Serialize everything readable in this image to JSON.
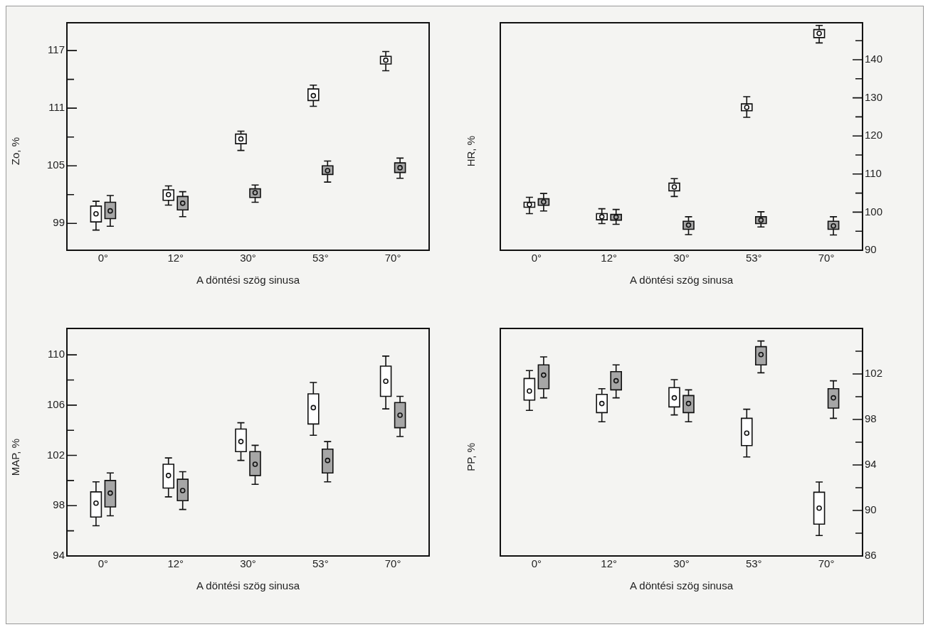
{
  "chart_data": [
    {
      "type": "box",
      "ylabel": "Zo, %",
      "xlabel": "A döntési szög sinusa",
      "categories": [
        "0°",
        "12°",
        "30°",
        "53°",
        "70°"
      ],
      "ylim": [
        96.2,
        119.9
      ],
      "yticks": [
        99,
        {
          "value": 102,
          "label": null
        },
        105,
        {
          "value": 108,
          "label": null
        },
        111,
        {
          "value": 114,
          "label": null
        },
        117
      ],
      "grid": false,
      "legend": false,
      "marker": "circle",
      "series": [
        {
          "color": "#ffffff",
          "boxes": [
            {
              "low": 98.3,
              "q1": 99.15,
              "median": 100.0,
              "q3": 100.8,
              "high": 101.3
            },
            {
              "low": 100.9,
              "q1": 101.4,
              "median": 102.0,
              "q3": 102.5,
              "high": 102.9
            },
            {
              "low": 106.6,
              "q1": 107.3,
              "median": 107.8,
              "q3": 108.3,
              "high": 108.6
            },
            {
              "low": 111.2,
              "q1": 111.8,
              "median": 112.3,
              "q3": 113.0,
              "high": 113.4
            },
            {
              "low": 114.9,
              "q1": 115.6,
              "median": 116.0,
              "q3": 116.4,
              "high": 116.9
            }
          ]
        },
        {
          "color": "#a6a6a6",
          "boxes": [
            {
              "low": 98.7,
              "q1": 99.5,
              "median": 100.3,
              "q3": 101.2,
              "high": 101.9
            },
            {
              "low": 99.7,
              "q1": 100.4,
              "median": 101.1,
              "q3": 101.8,
              "high": 102.3
            },
            {
              "low": 101.2,
              "q1": 101.7,
              "median": 102.2,
              "q3": 102.6,
              "high": 103.0
            },
            {
              "low": 103.3,
              "q1": 104.1,
              "median": 104.5,
              "q3": 105.0,
              "high": 105.5
            },
            {
              "low": 103.7,
              "q1": 104.3,
              "median": 104.8,
              "q3": 105.3,
              "high": 105.8
            }
          ]
        }
      ]
    },
    {
      "type": "box",
      "ylabel": "HR, %",
      "xlabel": "A döntési szög sinusa",
      "categories": [
        "0°",
        "12°",
        "30°",
        "53°",
        "70°"
      ],
      "y2lim": [
        90,
        149.7
      ],
      "y2ticks": [
        90,
        {
          "value": 95,
          "label": null
        },
        100,
        {
          "value": 105,
          "label": null
        },
        110,
        {
          "value": 115,
          "label": null
        },
        120,
        {
          "value": 125,
          "label": null
        },
        130,
        {
          "value": 135,
          "label": null
        },
        140,
        {
          "value": 145,
          "label": null
        }
      ],
      "grid": false,
      "legend": false,
      "marker": "circle",
      "series": [
        {
          "color": "#ffffff",
          "axis": "y2",
          "boxes": [
            {
              "low": 99.6,
              "q1": 101.3,
              "median": 102.0,
              "q3": 102.6,
              "high": 103.9
            },
            {
              "low": 97.0,
              "q1": 98.0,
              "median": 98.8,
              "q3": 99.6,
              "high": 100.9
            },
            {
              "low": 104.1,
              "q1": 105.6,
              "median": 106.6,
              "q3": 107.6,
              "high": 108.8
            },
            {
              "low": 124.9,
              "q1": 126.6,
              "median": 127.5,
              "q3": 128.4,
              "high": 130.3
            },
            {
              "low": 144.4,
              "q1": 145.8,
              "median": 146.9,
              "q3": 147.9,
              "high": 149.0
            }
          ]
        },
        {
          "color": "#a6a6a6",
          "axis": "y2",
          "boxes": [
            {
              "low": 100.3,
              "q1": 101.8,
              "median": 102.7,
              "q3": 103.5,
              "high": 104.9
            },
            {
              "low": 96.8,
              "q1": 97.9,
              "median": 98.7,
              "q3": 99.4,
              "high": 100.7
            },
            {
              "low": 94.1,
              "q1": 95.5,
              "median": 96.6,
              "q3": 97.6,
              "high": 98.8
            },
            {
              "low": 96.1,
              "q1": 97.0,
              "median": 97.9,
              "q3": 98.8,
              "high": 100.1
            },
            {
              "low": 94.0,
              "q1": 95.5,
              "median": 96.4,
              "q3": 97.6,
              "high": 98.8
            }
          ]
        }
      ]
    },
    {
      "type": "box",
      "ylabel": "MAP, %",
      "xlabel": "A döntési szög sinusa",
      "categories": [
        "0°",
        "12°",
        "30°",
        "53°",
        "70°"
      ],
      "ylim": [
        94,
        112.1
      ],
      "yticks": [
        94,
        {
          "value": 96,
          "label": null
        },
        98,
        {
          "value": 100,
          "label": null
        },
        102,
        {
          "value": 104,
          "label": null
        },
        106,
        {
          "value": 108,
          "label": null
        },
        110
      ],
      "grid": false,
      "legend": false,
      "marker": "circle",
      "series": [
        {
          "color": "#ffffff",
          "boxes": [
            {
              "low": 96.4,
              "q1": 97.1,
              "median": 98.2,
              "q3": 99.1,
              "high": 99.9
            },
            {
              "low": 98.7,
              "q1": 99.4,
              "median": 100.4,
              "q3": 101.3,
              "high": 101.8
            },
            {
              "low": 101.6,
              "q1": 102.3,
              "median": 103.1,
              "q3": 104.1,
              "high": 104.6
            },
            {
              "low": 103.6,
              "q1": 104.5,
              "median": 105.8,
              "q3": 106.9,
              "high": 107.8
            },
            {
              "low": 105.7,
              "q1": 106.7,
              "median": 107.9,
              "q3": 109.1,
              "high": 109.9
            }
          ]
        },
        {
          "color": "#a6a6a6",
          "boxes": [
            {
              "low": 97.2,
              "q1": 97.9,
              "median": 99.0,
              "q3": 100.0,
              "high": 100.6
            },
            {
              "low": 97.7,
              "q1": 98.4,
              "median": 99.2,
              "q3": 100.1,
              "high": 100.7
            },
            {
              "low": 99.7,
              "q1": 100.4,
              "median": 101.3,
              "q3": 102.3,
              "high": 102.8
            },
            {
              "low": 99.9,
              "q1": 100.6,
              "median": 101.6,
              "q3": 102.5,
              "high": 103.1
            },
            {
              "low": 103.5,
              "q1": 104.2,
              "median": 105.2,
              "q3": 106.2,
              "high": 106.7
            }
          ]
        }
      ]
    },
    {
      "type": "box",
      "ylabel": "PP, %",
      "xlabel": "A döntési szög sinusa",
      "categories": [
        "0°",
        "12°",
        "30°",
        "53°",
        "70°"
      ],
      "y2lim": [
        86,
        106
      ],
      "y2ticks": [
        86,
        {
          "value": 88,
          "label": null
        },
        90,
        {
          "value": 92,
          "label": null
        },
        94,
        {
          "value": 96,
          "label": null
        },
        98,
        {
          "value": 100,
          "label": null
        },
        102,
        {
          "value": 104,
          "label": null
        }
      ],
      "grid": false,
      "legend": false,
      "marker": "circle",
      "series": [
        {
          "color": "#ffffff",
          "axis": "y2",
          "boxes": [
            {
              "low": 98.8,
              "q1": 99.7,
              "median": 100.5,
              "q3": 101.6,
              "high": 102.3
            },
            {
              "low": 97.8,
              "q1": 98.6,
              "median": 99.4,
              "q3": 100.2,
              "high": 100.7
            },
            {
              "low": 98.4,
              "q1": 99.1,
              "median": 99.9,
              "q3": 100.8,
              "high": 101.5
            },
            {
              "low": 94.7,
              "q1": 95.7,
              "median": 96.8,
              "q3": 98.1,
              "high": 98.9
            },
            {
              "low": 87.8,
              "q1": 88.8,
              "median": 90.2,
              "q3": 91.6,
              "high": 92.5
            }
          ]
        },
        {
          "color": "#a6a6a6",
          "axis": "y2",
          "boxes": [
            {
              "low": 99.9,
              "q1": 100.7,
              "median": 101.9,
              "q3": 102.8,
              "high": 103.5
            },
            {
              "low": 99.9,
              "q1": 100.6,
              "median": 101.4,
              "q3": 102.2,
              "high": 102.8
            },
            {
              "low": 97.8,
              "q1": 98.6,
              "median": 99.4,
              "q3": 100.1,
              "high": 100.6
            },
            {
              "low": 102.1,
              "q1": 102.8,
              "median": 103.7,
              "q3": 104.4,
              "high": 104.9
            },
            {
              "low": 98.1,
              "q1": 99.0,
              "median": 99.9,
              "q3": 100.7,
              "high": 101.4
            }
          ]
        }
      ]
    }
  ]
}
